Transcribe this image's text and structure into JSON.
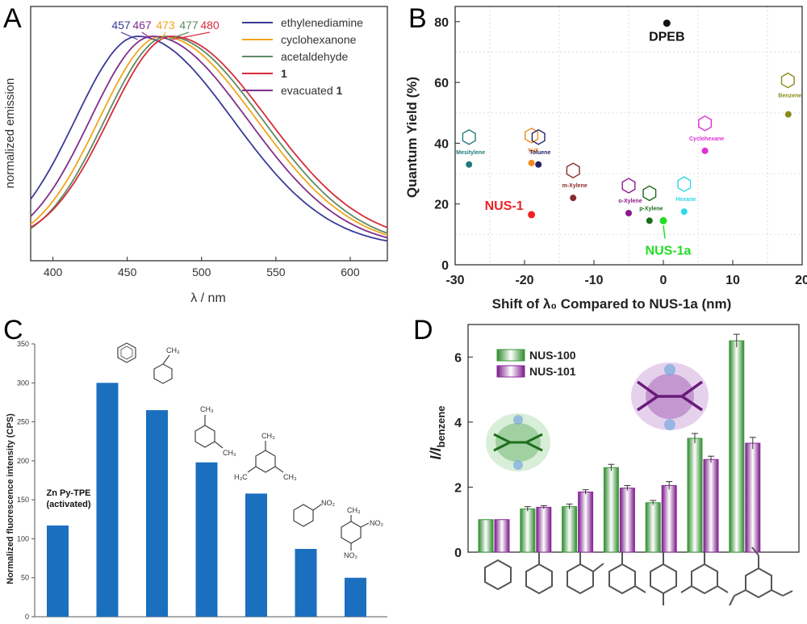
{
  "panels": {
    "A": {
      "letter": "A",
      "ylabel": "normalized emission",
      "xlabel": "λ / nm",
      "peak_labels": [
        "457",
        "467",
        "473",
        "477",
        "480"
      ],
      "legend": [
        {
          "label": "ethylenediamine",
          "color": "#3a3a9a"
        },
        {
          "label": "cyclohexanone",
          "color": "#f2a51c"
        },
        {
          "label": "acetaldehyde",
          "color": "#5f8a65"
        },
        {
          "label": "1",
          "color": "#d62c3a",
          "bold": true
        },
        {
          "label": "evacuated 1",
          "prefix": "evacuated ",
          "bold_part": "1",
          "color": "#7e2f8a"
        }
      ]
    },
    "B": {
      "letter": "B",
      "xlabel": "Shift of λ₀ Compared to NUS-1a (nm)",
      "ylabel": "Quantum Yield (%)"
    },
    "C": {
      "letter": "C",
      "ylabel": "Normalized fluorescence intensity (CPS)",
      "bar_color": "#1a6fbf",
      "first_bar_label": [
        "Zn Py-TPE",
        "(activated)"
      ],
      "substituent_labels": {
        "ch3": "CH₃",
        "h3c": "H₃C",
        "no2": "NO₂"
      }
    },
    "D": {
      "letter": "D",
      "ylabel_main": "I/I",
      "ylabel_sub": "benzene",
      "legend": [
        {
          "label": "NUS-100",
          "color": "#3a9a3a"
        },
        {
          "label": "NUS-101",
          "color": "#8a2a9a"
        }
      ]
    }
  },
  "chart_data": [
    {
      "panel": "A",
      "type": "line",
      "xlabel": "λ / nm",
      "ylabel": "normalized emission",
      "xlim": [
        385,
        625
      ],
      "x_ticks": [
        400,
        450,
        500,
        550,
        600
      ],
      "series": [
        {
          "name": "ethylenediamine",
          "peak": 457,
          "color": "#3a3a9a"
        },
        {
          "name": "cyclohexanone",
          "peak": 473,
          "color": "#f2a51c"
        },
        {
          "name": "acetaldehyde",
          "peak": 477,
          "color": "#5f8a65"
        },
        {
          "name": "1",
          "peak": 480,
          "color": "#d62c3a"
        },
        {
          "name": "evacuated 1",
          "peak": 467,
          "color": "#7e2f8a"
        }
      ]
    },
    {
      "panel": "B",
      "type": "scatter",
      "xlabel": "Shift of λ₀ Compared to NUS-1a (nm)",
      "ylabel": "Quantum Yield (%)",
      "xlim": [
        -30,
        20
      ],
      "ylim": [
        0,
        85
      ],
      "x_ticks": [
        -30,
        -20,
        -10,
        0,
        10,
        20
      ],
      "y_ticks": [
        0,
        20,
        40,
        60,
        80
      ],
      "points": [
        {
          "label": "DPEB",
          "x": 0.5,
          "y": 79.5,
          "color": "#111111",
          "big": true
        },
        {
          "label": "Benzene",
          "x": 18,
          "y": 49.5,
          "color": "#8a8a1a"
        },
        {
          "label": "Mesitylene",
          "x": -28,
          "y": 33,
          "color": "#1f7a7a"
        },
        {
          "label": "THF",
          "x": -19,
          "y": 33.5,
          "color": "#f28a1c"
        },
        {
          "label": "Toluene",
          "x": -18,
          "y": 33,
          "color": "#22226a"
        },
        {
          "label": "Cyclohexane",
          "x": 6,
          "y": 37.5,
          "color": "#e02ed8"
        },
        {
          "label": "m-Xylene",
          "x": -13,
          "y": 22,
          "color": "#8a2a2a"
        },
        {
          "label": "o-Xylene",
          "x": -5,
          "y": 17,
          "color": "#8a1a8a"
        },
        {
          "label": "p-Xylene",
          "x": -2,
          "y": 14.5,
          "color": "#1a6a1a"
        },
        {
          "label": "Hexane",
          "x": 3,
          "y": 17.5,
          "color": "#2ed8e8"
        },
        {
          "label": "NUS-1",
          "x": -19,
          "y": 16.5,
          "color": "#ee2222",
          "big": true
        },
        {
          "label": "NUS-1a",
          "x": 0,
          "y": 14.5,
          "color": "#22dd22",
          "big": true
        }
      ]
    },
    {
      "panel": "C",
      "type": "bar",
      "ylabel": "Normalized fluorescence intensity (CPS)",
      "ylim": [
        0,
        350
      ],
      "y_ticks": [
        0,
        50,
        100,
        150,
        200,
        250,
        300,
        350
      ],
      "values": [
        117,
        300,
        265,
        198,
        158,
        87,
        50
      ]
    },
    {
      "panel": "D",
      "type": "bar",
      "ylabel": "I/I benzene",
      "ylim": [
        0,
        7
      ],
      "y_ticks": [
        0,
        2,
        4,
        6
      ],
      "series": [
        {
          "name": "NUS-100",
          "values": [
            1.0,
            1.33,
            1.4,
            2.6,
            1.52,
            3.5,
            6.5
          ],
          "errors": [
            0,
            0.07,
            0.08,
            0.1,
            0.07,
            0.15,
            0.2
          ]
        },
        {
          "name": "NUS-101",
          "values": [
            1.0,
            1.38,
            1.85,
            1.97,
            2.05,
            2.85,
            3.35
          ],
          "errors": [
            0,
            0.05,
            0.07,
            0.08,
            0.12,
            0.1,
            0.18
          ]
        }
      ]
    }
  ]
}
